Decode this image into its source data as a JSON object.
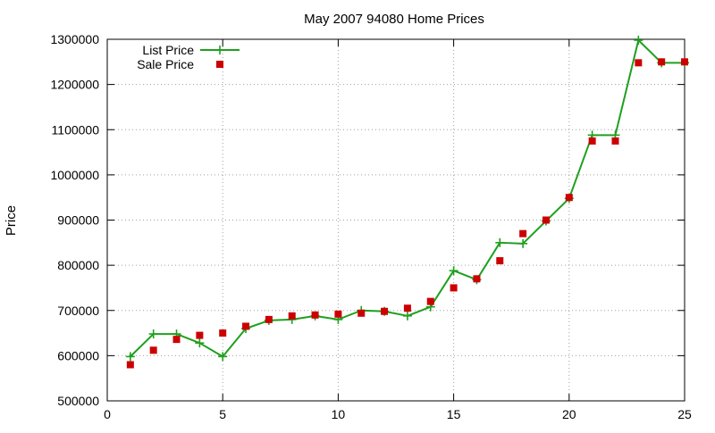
{
  "chart_data": {
    "type": "line",
    "title": "May 2007 94080 Home Prices",
    "xlabel": "",
    "ylabel": "Price",
    "xlim": [
      0,
      25
    ],
    "ylim": [
      500000,
      1300000
    ],
    "xticks": [
      0,
      5,
      10,
      15,
      20,
      25
    ],
    "yticks": [
      500000,
      600000,
      700000,
      800000,
      900000,
      1000000,
      1100000,
      1200000,
      1300000
    ],
    "grid": true,
    "legend_position": "top-left",
    "series": [
      {
        "name": "List Price",
        "style": "line-plus",
        "color": "#1ea01e",
        "points": [
          {
            "x": 1,
            "y": 598000
          },
          {
            "x": 2,
            "y": 648000
          },
          {
            "x": 3,
            "y": 648000
          },
          {
            "x": 4,
            "y": 628000
          },
          {
            "x": 5,
            "y": 598000
          },
          {
            "x": 6,
            "y": 660000
          },
          {
            "x": 7,
            "y": 678000
          },
          {
            "x": 8,
            "y": 680000
          },
          {
            "x": 9,
            "y": 688000
          },
          {
            "x": 10,
            "y": 680000
          },
          {
            "x": 11,
            "y": 700000
          },
          {
            "x": 12,
            "y": 698000
          },
          {
            "x": 13,
            "y": 688000
          },
          {
            "x": 14,
            "y": 708000
          },
          {
            "x": 15,
            "y": 788000
          },
          {
            "x": 16,
            "y": 768000
          },
          {
            "x": 17,
            "y": 850000
          },
          {
            "x": 18,
            "y": 848000
          },
          {
            "x": 19,
            "y": 898000
          },
          {
            "x": 20,
            "y": 948000
          },
          {
            "x": 21,
            "y": 1088000
          },
          {
            "x": 22,
            "y": 1088000
          },
          {
            "x": 23,
            "y": 1298000
          },
          {
            "x": 24,
            "y": 1248000
          },
          {
            "x": 25,
            "y": 1248000
          }
        ]
      },
      {
        "name": "Sale Price",
        "style": "square-points",
        "color": "#cc0000",
        "points": [
          {
            "x": 1,
            "y": 580000
          },
          {
            "x": 2,
            "y": 612000
          },
          {
            "x": 3,
            "y": 636000
          },
          {
            "x": 4,
            "y": 645000
          },
          {
            "x": 5,
            "y": 650000
          },
          {
            "x": 6,
            "y": 665000
          },
          {
            "x": 7,
            "y": 680000
          },
          {
            "x": 8,
            "y": 688000
          },
          {
            "x": 9,
            "y": 690000
          },
          {
            "x": 10,
            "y": 692000
          },
          {
            "x": 11,
            "y": 694000
          },
          {
            "x": 12,
            "y": 698000
          },
          {
            "x": 13,
            "y": 705000
          },
          {
            "x": 14,
            "y": 720000
          },
          {
            "x": 15,
            "y": 750000
          },
          {
            "x": 16,
            "y": 770000
          },
          {
            "x": 17,
            "y": 810000
          },
          {
            "x": 18,
            "y": 870000
          },
          {
            "x": 19,
            "y": 900000
          },
          {
            "x": 20,
            "y": 950000
          },
          {
            "x": 21,
            "y": 1075000
          },
          {
            "x": 22,
            "y": 1075000
          },
          {
            "x": 23,
            "y": 1248000
          },
          {
            "x": 24,
            "y": 1250000
          },
          {
            "x": 25,
            "y": 1250000
          }
        ]
      }
    ]
  }
}
